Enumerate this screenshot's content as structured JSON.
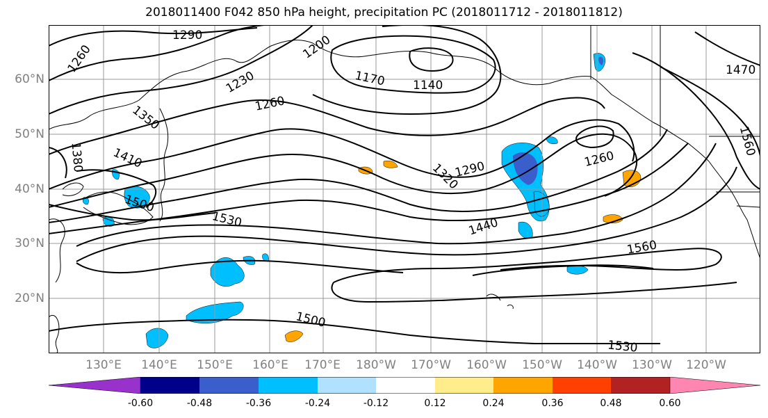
{
  "title": "2018011400 F042 850 hPa height, precipitation PC (2018011712 - 2018011812)",
  "lat_labels": [
    "20°N",
    "30°N",
    "40°N",
    "50°N",
    "60°N"
  ],
  "lon_labels": [
    "130°E",
    "140°E",
    "150°E",
    "160°E",
    "170°E",
    "180°W",
    "170°W",
    "160°W",
    "150°W",
    "140°W",
    "130°W",
    "120°W"
  ],
  "contour_labels": [
    "1290",
    "1260",
    "1200",
    "1230",
    "1260",
    "1350",
    "1380",
    "1410",
    "1500",
    "1530",
    "1170",
    "1140",
    "1290",
    "1320",
    "1260",
    "1440",
    "1560",
    "1500",
    "1530",
    "1470",
    "1560"
  ],
  "colorbar": {
    "ticks": [
      "-0.60",
      "-0.48",
      "-0.36",
      "-0.24",
      "-0.12",
      "0.12",
      "0.24",
      "0.36",
      "0.48",
      "0.60"
    ],
    "colors": [
      "#9932cc",
      "#00008b",
      "#3a5fcd",
      "#00bfff",
      "#b0e2ff",
      "#ffffff",
      "#ffec8b",
      "#ffa500",
      "#ff4000",
      "#b22222",
      "#ff86b0"
    ]
  }
}
